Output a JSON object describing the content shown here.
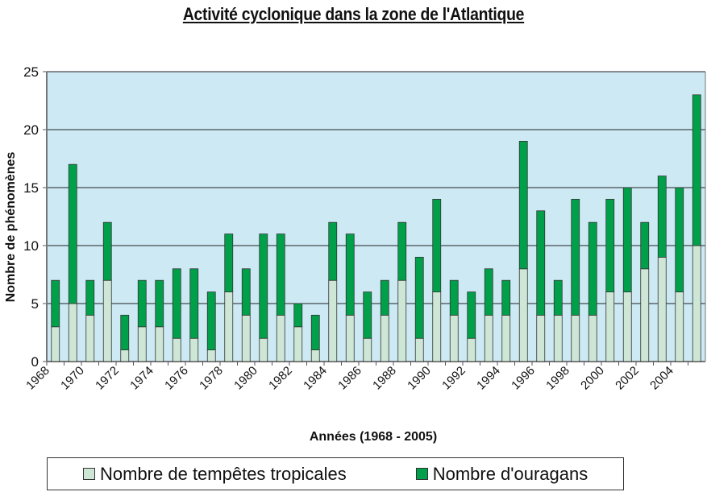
{
  "chart_data": {
    "type": "bar",
    "stacked": true,
    "title": "Activité cyclonique dans la zone de l'Atlantique",
    "xlabel": "Années (1968 - 2005)",
    "ylabel": "Nombre de phénomènes",
    "ylim": [
      0,
      25
    ],
    "yticks": [
      0,
      5,
      10,
      15,
      20,
      25
    ],
    "grid": true,
    "legend_position": "bottom",
    "categories": [
      1968,
      1969,
      1970,
      1971,
      1972,
      1973,
      1974,
      1975,
      1976,
      1977,
      1978,
      1979,
      1980,
      1981,
      1982,
      1983,
      1984,
      1985,
      1986,
      1987,
      1988,
      1989,
      1990,
      1991,
      1992,
      1993,
      1994,
      1995,
      1996,
      1997,
      1998,
      1999,
      2000,
      2001,
      2002,
      2003,
      2004,
      2005
    ],
    "xtick_labels": [
      "1968",
      "1970",
      "1972",
      "1974",
      "1976",
      "1978",
      "1980",
      "1982",
      "1984",
      "1986",
      "1988",
      "1990",
      "1992",
      "1994",
      "1996",
      "1998",
      "2000",
      "2002",
      "2004"
    ],
    "series": [
      {
        "name": "Nombre de tempêtes tropicales",
        "color": "#cde6d6",
        "values": [
          3,
          5,
          4,
          7,
          1,
          3,
          3,
          2,
          2,
          1,
          6,
          4,
          2,
          4,
          3,
          1,
          7,
          4,
          2,
          4,
          7,
          2,
          6,
          4,
          2,
          4,
          4,
          8,
          4,
          4,
          4,
          4,
          6,
          6,
          8,
          9,
          6,
          10
        ]
      },
      {
        "name": "Nombre d'ouragans",
        "color": "#00a04a",
        "values": [
          4,
          12,
          3,
          5,
          3,
          4,
          4,
          6,
          6,
          5,
          5,
          4,
          9,
          7,
          2,
          3,
          5,
          7,
          4,
          3,
          5,
          7,
          8,
          3,
          4,
          4,
          3,
          11,
          9,
          3,
          10,
          8,
          8,
          9,
          4,
          7,
          9,
          13
        ]
      }
    ],
    "plot_background": "#cce9f4"
  }
}
